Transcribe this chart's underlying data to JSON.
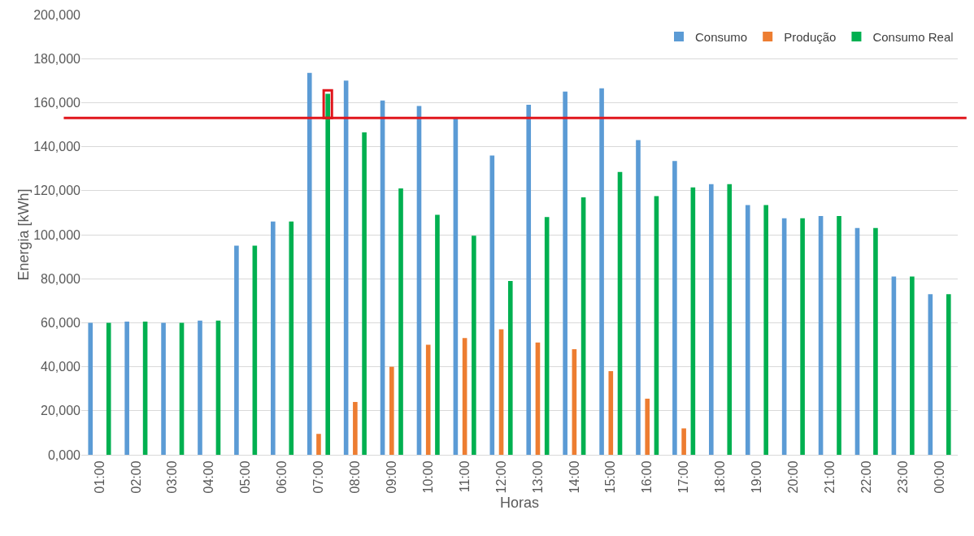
{
  "chart_data": {
    "type": "bar",
    "xlabel": "Horas",
    "ylabel": "Energia [kWh]",
    "categories": [
      "01:00",
      "02:00",
      "03:00",
      "04:00",
      "05:00",
      "06:00",
      "07:00",
      "08:00",
      "09:00",
      "10:00",
      "11:00",
      "12:00",
      "13:00",
      "14:00",
      "15:00",
      "16:00",
      "17:00",
      "18:00",
      "19:00",
      "20:00",
      "21:00",
      "22:00",
      "23:00",
      "00:00"
    ],
    "series": [
      {
        "name": "Consumo",
        "color": "#5b9bd5",
        "values": [
          60000,
          60500,
          60000,
          61000,
          95000,
          106000,
          173500,
          170000,
          161000,
          158500,
          153000,
          136000,
          159000,
          165000,
          166500,
          143000,
          133500,
          123000,
          113500,
          107500,
          108500,
          103000,
          81000,
          73000
        ]
      },
      {
        "name": "Produção",
        "color": "#ed7d31",
        "values": [
          null,
          null,
          null,
          null,
          null,
          null,
          9500,
          24000,
          40000,
          50000,
          53000,
          57000,
          51000,
          48000,
          38000,
          25500,
          12000,
          null,
          null,
          null,
          null,
          null,
          null,
          null
        ]
      },
      {
        "name": "Consumo Real",
        "color": "#00b050",
        "values": [
          60000,
          60500,
          60000,
          61000,
          95000,
          106000,
          164000,
          146500,
          121000,
          109000,
          99500,
          79000,
          108000,
          117000,
          128500,
          117500,
          121500,
          123000,
          113500,
          107500,
          108500,
          103000,
          81000,
          73000
        ]
      }
    ],
    "ylim": [
      0,
      200000
    ],
    "yticks": [
      {
        "value": 0,
        "label": "0,000"
      },
      {
        "value": 20000,
        "label": "20,000"
      },
      {
        "value": 40000,
        "label": "40,000"
      },
      {
        "value": 60000,
        "label": "60,000"
      },
      {
        "value": 80000,
        "label": "80,000"
      },
      {
        "value": 100000,
        "label": "100,000"
      },
      {
        "value": 120000,
        "label": "120,000"
      },
      {
        "value": 140000,
        "label": "140,000"
      },
      {
        "value": 160000,
        "label": "160,000"
      },
      {
        "value": 180000,
        "label": "180,000"
      },
      {
        "value": 200000,
        "label": "200,000"
      }
    ],
    "ref_lines": [
      {
        "axis": "y",
        "value": 153000,
        "color": "#e0161c"
      }
    ],
    "grid": "y",
    "legend": "top right"
  }
}
